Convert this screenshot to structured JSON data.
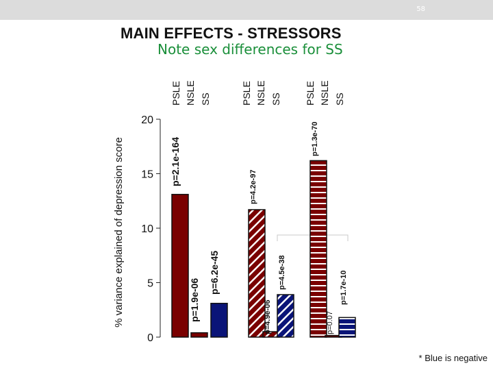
{
  "slide": {
    "number": "58",
    "title": "MAIN EFFECTS  - STRESSORS",
    "subtitle": "Note sex differences for SS",
    "footnote": "* Blue is negative"
  },
  "colors": {
    "dark_red": "#7a0000",
    "navy": "#0a1478",
    "bar_outline": "#111111",
    "title_green": "#1a8f3a"
  },
  "chart_data": {
    "type": "bar",
    "ylabel": "% variance explained of depression score",
    "ylim": [
      0,
      20
    ],
    "yticks": [
      0,
      5,
      10,
      15,
      20
    ],
    "group_labels": [
      [
        "PSLE",
        "NSLE",
        "SS"
      ],
      [
        "PSLE",
        "NSLE",
        "SS"
      ],
      [
        "PSLE",
        "NSLE",
        "SS"
      ]
    ],
    "groups": [
      {
        "pattern": "solid",
        "bars": [
          {
            "category": "PSLE",
            "value": 13.1,
            "color": "dark_red",
            "pvalue": "p=2.1e-164"
          },
          {
            "category": "NSLE",
            "value": 0.4,
            "color": "dark_red",
            "pvalue": "p=1.9e-06"
          },
          {
            "category": "SS",
            "value": 3.1,
            "color": "navy",
            "pvalue": "p=6.2e-45"
          }
        ]
      },
      {
        "pattern": "diagonal",
        "bars": [
          {
            "category": "PSLE",
            "value": 11.7,
            "color": "dark_red",
            "pvalue": "p=4.2e-97"
          },
          {
            "category": "NSLE",
            "value": 0.5,
            "color": "dark_red",
            "pvalue": "p=4.9e-06"
          },
          {
            "category": "SS",
            "value": 3.9,
            "color": "navy",
            "pvalue": "p=4.5e-38"
          }
        ]
      },
      {
        "pattern": "horizontal",
        "bars": [
          {
            "category": "PSLE",
            "value": 16.2,
            "color": "dark_red",
            "pvalue": "p=1.3e-70"
          },
          {
            "category": "NSLE",
            "value": 0.15,
            "color": "dark_red",
            "pvalue": "p=0.07"
          },
          {
            "category": "SS",
            "value": 1.8,
            "color": "navy",
            "pvalue": "p=1.7e-10"
          }
        ]
      }
    ]
  }
}
